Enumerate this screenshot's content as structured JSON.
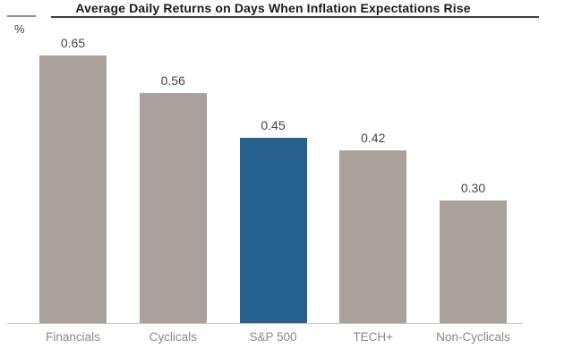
{
  "chart_data": {
    "type": "bar",
    "title": "Average Daily Returns on Days When Inflation Expectations Rise",
    "unit_label": "%",
    "categories": [
      "Financials",
      "Cyclicals",
      "S&P 500",
      "TECH+",
      "Non-Cyclicals"
    ],
    "values": [
      0.65,
      0.56,
      0.45,
      0.42,
      0.3
    ],
    "value_labels": [
      "0.65",
      "0.56",
      "0.45",
      "0.42",
      "0.30"
    ],
    "highlight_index": 2,
    "highlight_category": "S&P 500",
    "ylim": [
      0,
      0.7
    ],
    "grid": false,
    "legend": false,
    "colors": {
      "bar_default": "#a9a29b",
      "bar_highlight": "#26608f",
      "value_label": "#464646",
      "category_label": "#8c8985",
      "title": "#1c1c1c",
      "title_underline": "#3f3f3f",
      "rule_left_stub": "#909090",
      "axis_line": "#c9c7c5",
      "background": "#ffffff"
    }
  }
}
